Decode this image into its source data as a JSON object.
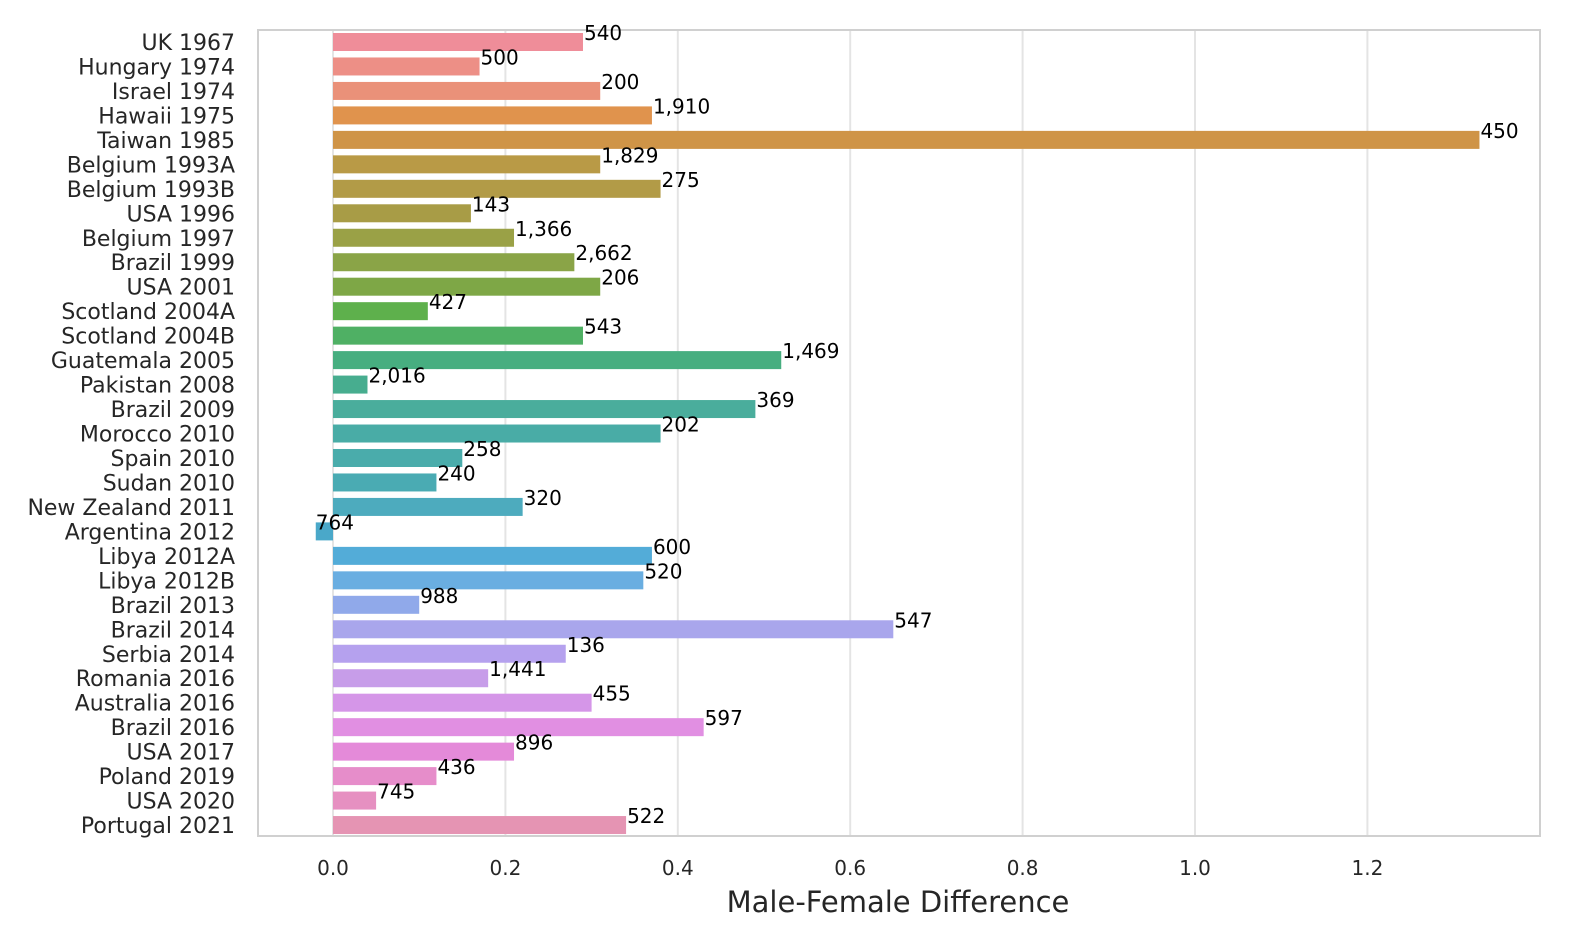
{
  "chart_data": {
    "type": "bar",
    "orientation": "horizontal",
    "title": "",
    "xlabel": "Male-Female Difference",
    "ylabel": "",
    "xlim": [
      -0.09,
      1.4
    ],
    "xticks": [
      0.0,
      0.2,
      0.4,
      0.6,
      0.8,
      1.0,
      1.2
    ],
    "xtick_labels": [
      "0.0",
      "0.2",
      "0.4",
      "0.6",
      "0.8",
      "1.0",
      "1.2"
    ],
    "grid": "vertical",
    "categories": [
      "UK 1967",
      "Hungary 1974",
      "Israel 1974",
      "Hawaii 1975",
      "Taiwan 1985",
      "Belgium 1993A",
      "Belgium 1993B",
      "USA 1996",
      "Belgium 1997",
      "Brazil 1999",
      "USA 2001",
      "Scotland 2004A",
      "Scotland 2004B",
      "Guatemala 2005",
      "Pakistan 2008",
      "Brazil 2009",
      "Morocco 2010",
      "Spain 2010",
      "Sudan 2010",
      "New Zealand 2011",
      "Argentina 2012",
      "Libya 2012A",
      "Libya 2012B",
      "Brazil 2013",
      "Brazil 2014",
      "Serbia 2014",
      "Romania 2016",
      "Australia 2016",
      "Brazil 2016",
      "USA 2017",
      "Poland 2019",
      "USA 2020",
      "Portugal 2021"
    ],
    "values": [
      0.29,
      0.17,
      0.31,
      0.37,
      1.33,
      0.31,
      0.38,
      0.16,
      0.21,
      0.28,
      0.31,
      0.11,
      0.29,
      0.52,
      0.04,
      0.49,
      0.38,
      0.15,
      0.12,
      0.22,
      -0.02,
      0.37,
      0.36,
      0.1,
      0.65,
      0.27,
      0.18,
      0.3,
      0.43,
      0.21,
      0.12,
      0.05,
      0.34
    ],
    "data_labels": [
      "540",
      "500",
      "200",
      "1,910",
      "450",
      "1,829",
      "275",
      "143",
      "1,366",
      "2,662",
      "206",
      "427",
      "543",
      "1,469",
      "2,016",
      "369",
      "202",
      "258",
      "240",
      "320",
      "764",
      "600",
      "520",
      "988",
      "547",
      "136",
      "1,441",
      "455",
      "597",
      "896",
      "436",
      "745",
      "522"
    ],
    "colors": [
      "#ef8d99",
      "#ed8f86",
      "#ea9179",
      "#e0934d",
      "#cf9447",
      "#b99a46",
      "#b29b47",
      "#a89c46",
      "#9aa146",
      "#8aa447",
      "#7ea746",
      "#5eb04c",
      "#4fb064",
      "#47ae80",
      "#47ad8f",
      "#4aad9c",
      "#49aca6",
      "#4aacab",
      "#4aabb3",
      "#4dabbe",
      "#4aa8c9",
      "#53acd8",
      "#6aaee1",
      "#90a9ea",
      "#a9a6ec",
      "#b5a1ee",
      "#c79de9",
      "#d596e8",
      "#e18fe2",
      "#e48ad9",
      "#e68dca",
      "#e690c1",
      "#e594b3"
    ]
  }
}
